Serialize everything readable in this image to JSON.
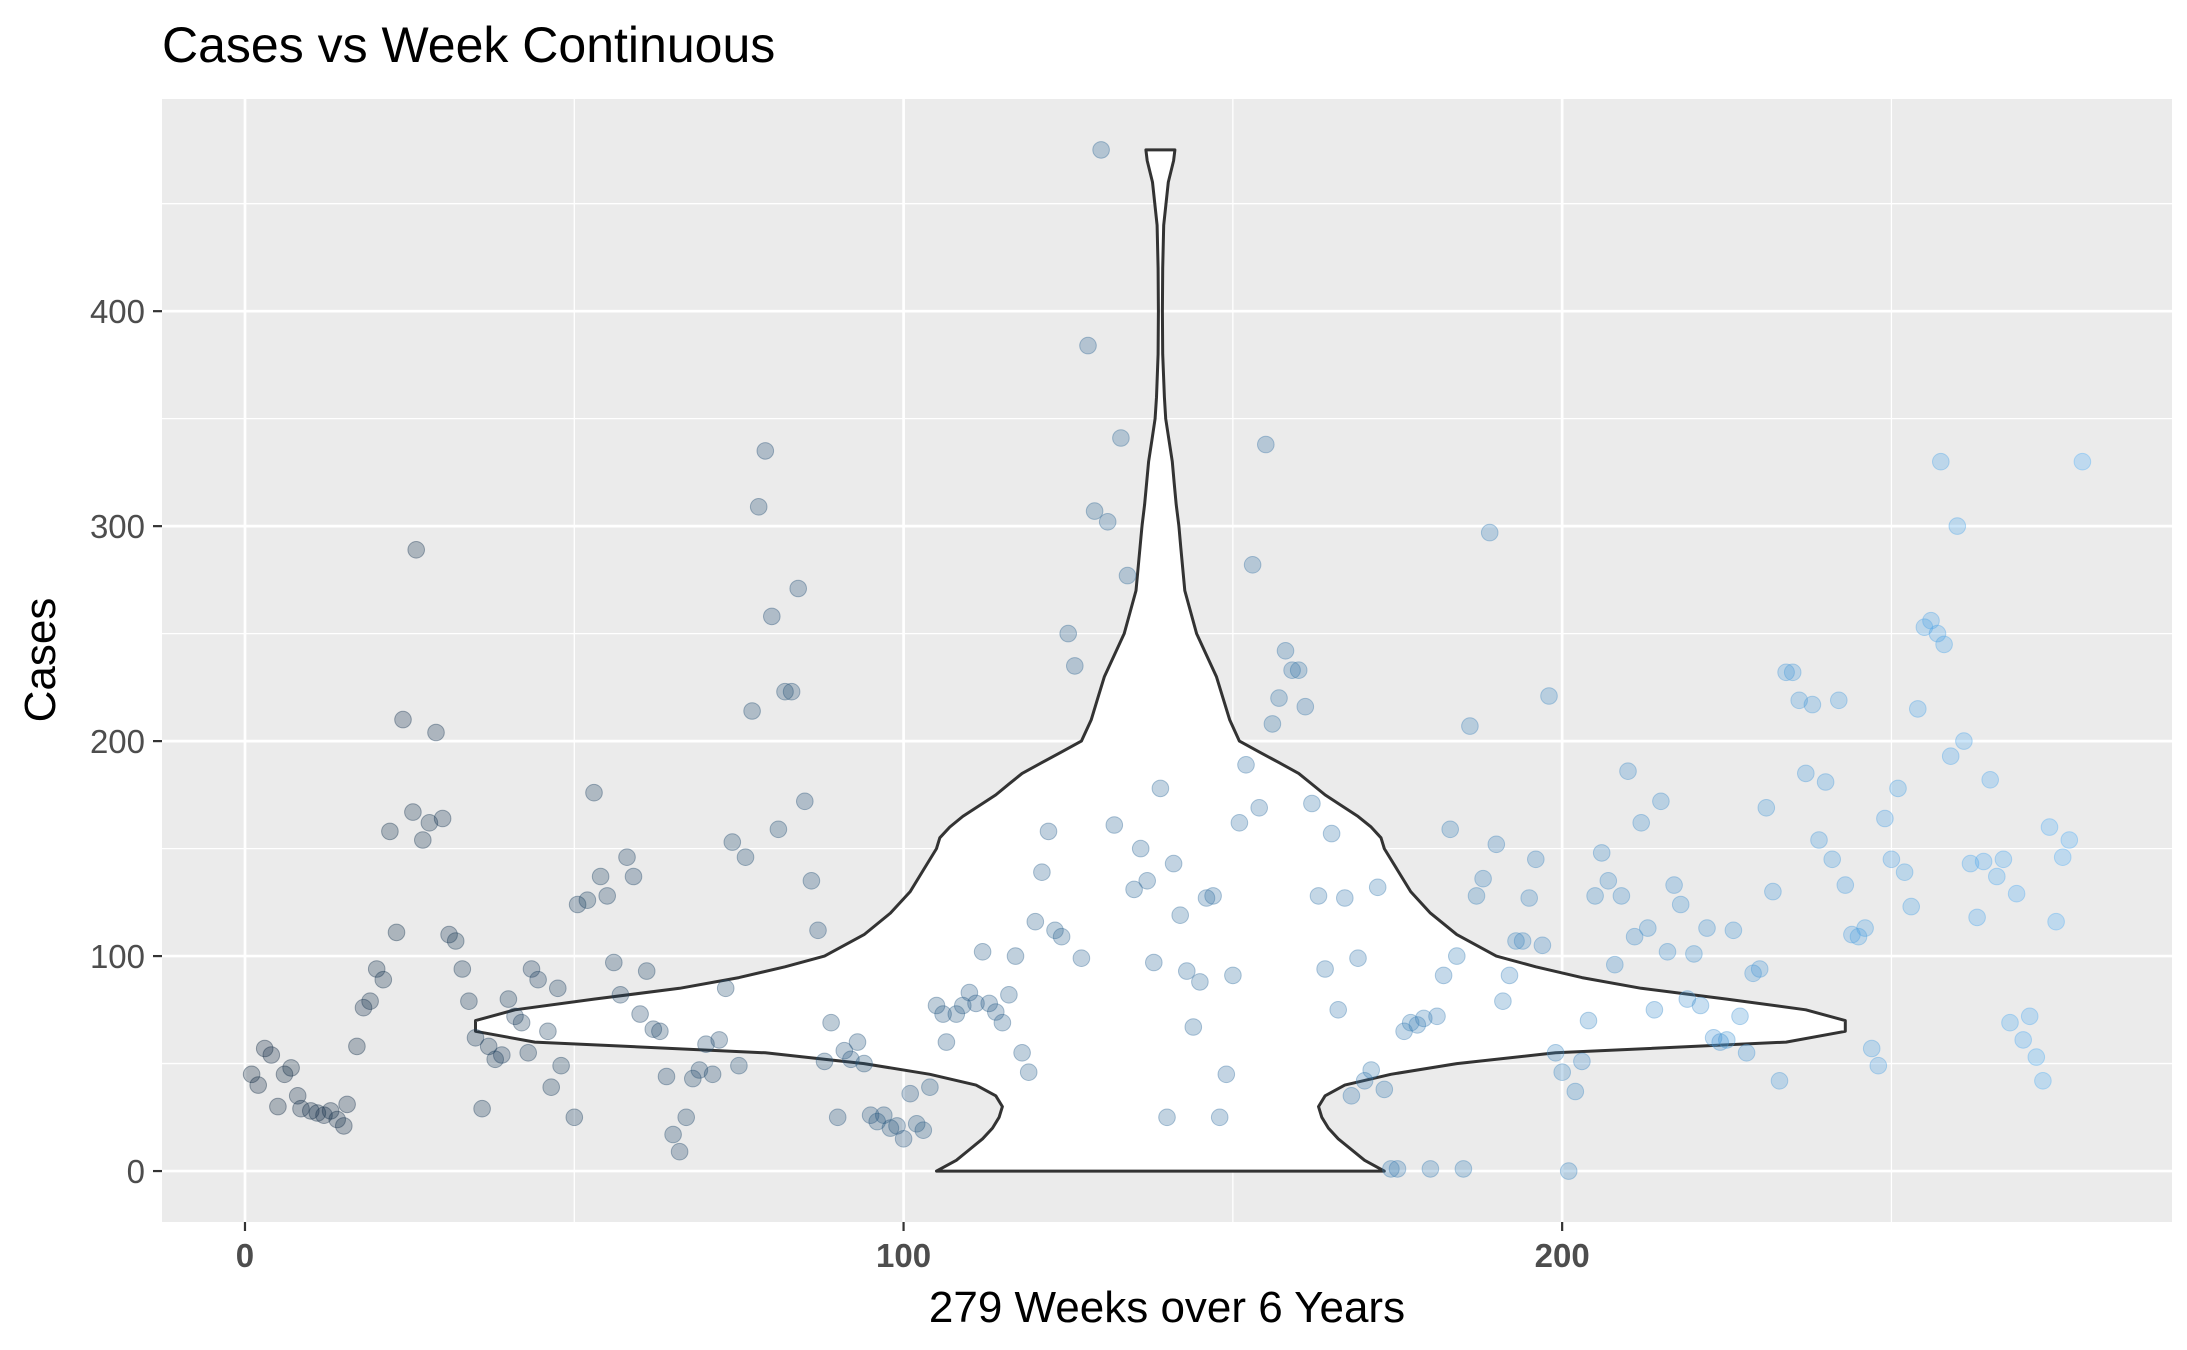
{
  "chart_data": {
    "type": "scatter",
    "title": "Cases vs Week Continuous",
    "xlabel": "279 Weeks over 6 Years",
    "ylabel": "Cases",
    "xlim": [
      -12.6,
      292.6
    ],
    "ylim": [
      -23.7,
      498.7
    ],
    "x_ticks": [
      0,
      100,
      200
    ],
    "x_tick_labels": [
      "0",
      "100",
      "200"
    ],
    "y_ticks": [
      0,
      100,
      200,
      300,
      400
    ],
    "y_tick_labels": [
      "0",
      "100",
      "200",
      "300",
      "400"
    ],
    "grid": true,
    "legend": "none",
    "point_alpha": 0.3,
    "color_gradient": [
      "#132b43",
      "#56b1f7"
    ],
    "points": [
      [
        1,
        45
      ],
      [
        2,
        40
      ],
      [
        3,
        57
      ],
      [
        4,
        54
      ],
      [
        5,
        30
      ],
      [
        6,
        45
      ],
      [
        7,
        48
      ],
      [
        8,
        35
      ],
      [
        8.5,
        29
      ],
      [
        10,
        28
      ],
      [
        11,
        27
      ],
      [
        12,
        26
      ],
      [
        13,
        28
      ],
      [
        14,
        24
      ],
      [
        15,
        21
      ],
      [
        15.5,
        31
      ],
      [
        17,
        58
      ],
      [
        18,
        76
      ],
      [
        19,
        79
      ],
      [
        20,
        94
      ],
      [
        21,
        89
      ],
      [
        22,
        158
      ],
      [
        23,
        111
      ],
      [
        24,
        210
      ],
      [
        25.5,
        167
      ],
      [
        26,
        289
      ],
      [
        27,
        154
      ],
      [
        28,
        162
      ],
      [
        29,
        204
      ],
      [
        30,
        164
      ],
      [
        31,
        110
      ],
      [
        32,
        107
      ],
      [
        33,
        94
      ],
      [
        34,
        79
      ],
      [
        35,
        62
      ],
      [
        36,
        29
      ],
      [
        37,
        58
      ],
      [
        38,
        52
      ],
      [
        39,
        54
      ],
      [
        40,
        80
      ],
      [
        41,
        72
      ],
      [
        42,
        69
      ],
      [
        43,
        55
      ],
      [
        43.5,
        94
      ],
      [
        44.5,
        89
      ],
      [
        46,
        65
      ],
      [
        46.5,
        39
      ],
      [
        47.5,
        85
      ],
      [
        48,
        49
      ],
      [
        50,
        25
      ],
      [
        50.5,
        124
      ],
      [
        52,
        126
      ],
      [
        53,
        176
      ],
      [
        54,
        137
      ],
      [
        55,
        128
      ],
      [
        56,
        97
      ],
      [
        57,
        82
      ],
      [
        58,
        146
      ],
      [
        59,
        137
      ],
      [
        60,
        73
      ],
      [
        61,
        93
      ],
      [
        62,
        66
      ],
      [
        63,
        65
      ],
      [
        64,
        44
      ],
      [
        65,
        17
      ],
      [
        66,
        9
      ],
      [
        67,
        25
      ],
      [
        68,
        43
      ],
      [
        69,
        47
      ],
      [
        70,
        59
      ],
      [
        71,
        45
      ],
      [
        72,
        61
      ],
      [
        73,
        85
      ],
      [
        74,
        153
      ],
      [
        75,
        49
      ],
      [
        76,
        146
      ],
      [
        77,
        214
      ],
      [
        78,
        309
      ],
      [
        79,
        335
      ],
      [
        80,
        258
      ],
      [
        81,
        159
      ],
      [
        82,
        223
      ],
      [
        83,
        223
      ],
      [
        84,
        271
      ],
      [
        85,
        172
      ],
      [
        86,
        135
      ],
      [
        87,
        112
      ],
      [
        88,
        51
      ],
      [
        89,
        69
      ],
      [
        90,
        25
      ],
      [
        91,
        56
      ],
      [
        92,
        52
      ],
      [
        93,
        60
      ],
      [
        94,
        50
      ],
      [
        95,
        26
      ],
      [
        96,
        23
      ],
      [
        97,
        26
      ],
      [
        98,
        20
      ],
      [
        99,
        21
      ],
      [
        100,
        15
      ],
      [
        101,
        36
      ],
      [
        102,
        22
      ],
      [
        103,
        19
      ],
      [
        104,
        39
      ],
      [
        105,
        77
      ],
      [
        106,
        73
      ],
      [
        106.5,
        60
      ],
      [
        108,
        73
      ],
      [
        109,
        77
      ],
      [
        110,
        83
      ],
      [
        111,
        78
      ],
      [
        112,
        102
      ],
      [
        113,
        78
      ],
      [
        114,
        74
      ],
      [
        115,
        69
      ],
      [
        116,
        82
      ],
      [
        117,
        100
      ],
      [
        118,
        55
      ],
      [
        119,
        46
      ],
      [
        120,
        116
      ],
      [
        121,
        139
      ],
      [
        122,
        158
      ],
      [
        123,
        112
      ],
      [
        124,
        109
      ],
      [
        125,
        250
      ],
      [
        126,
        235
      ],
      [
        127,
        99
      ],
      [
        128,
        384
      ],
      [
        129,
        307
      ],
      [
        130,
        475
      ],
      [
        131,
        302
      ],
      [
        132,
        161
      ],
      [
        133,
        341
      ],
      [
        134,
        277
      ],
      [
        135,
        131
      ],
      [
        136,
        150
      ],
      [
        137,
        135
      ],
      [
        138,
        97
      ],
      [
        139,
        178
      ],
      [
        140,
        25
      ],
      [
        141,
        143
      ],
      [
        142,
        119
      ],
      [
        143,
        93
      ],
      [
        144,
        67
      ],
      [
        145,
        88
      ],
      [
        146,
        127
      ],
      [
        147,
        128
      ],
      [
        148,
        25
      ],
      [
        149,
        45
      ],
      [
        150,
        91
      ],
      [
        151,
        162
      ],
      [
        152,
        189
      ],
      [
        153,
        282
      ],
      [
        154,
        169
      ],
      [
        155,
        338
      ],
      [
        156,
        208
      ],
      [
        157,
        220
      ],
      [
        158,
        242
      ],
      [
        159,
        233
      ],
      [
        160,
        233
      ],
      [
        161,
        216
      ],
      [
        162,
        171
      ],
      [
        163,
        128
      ],
      [
        164,
        94
      ],
      [
        165,
        157
      ],
      [
        166,
        75
      ],
      [
        167,
        127
      ],
      [
        168,
        35
      ],
      [
        169,
        99
      ],
      [
        170,
        42
      ],
      [
        171,
        47
      ],
      [
        172,
        132
      ],
      [
        173,
        38
      ],
      [
        174,
        1
      ],
      [
        175,
        1
      ],
      [
        176,
        65
      ],
      [
        177,
        69
      ],
      [
        178,
        68
      ],
      [
        179,
        71
      ],
      [
        180,
        1
      ],
      [
        181,
        72
      ],
      [
        182,
        91
      ],
      [
        183,
        159
      ],
      [
        184,
        100
      ],
      [
        185,
        1
      ],
      [
        186,
        207
      ],
      [
        187,
        128
      ],
      [
        188,
        136
      ],
      [
        189,
        297
      ],
      [
        190,
        152
      ],
      [
        191,
        79
      ],
      [
        192,
        91
      ],
      [
        193,
        107
      ],
      [
        194,
        107
      ],
      [
        195,
        127
      ],
      [
        196,
        145
      ],
      [
        197,
        105
      ],
      [
        198,
        221
      ],
      [
        199,
        55
      ],
      [
        200,
        46
      ],
      [
        201,
        0
      ],
      [
        202,
        37
      ],
      [
        203,
        51
      ],
      [
        204,
        70
      ],
      [
        205,
        128
      ],
      [
        206,
        148
      ],
      [
        207,
        135
      ],
      [
        208,
        96
      ],
      [
        209,
        128
      ],
      [
        210,
        186
      ],
      [
        211,
        109
      ],
      [
        212,
        162
      ],
      [
        213,
        113
      ],
      [
        214,
        75
      ],
      [
        215,
        172
      ],
      [
        216,
        102
      ],
      [
        217,
        133
      ],
      [
        218,
        124
      ],
      [
        219,
        80
      ],
      [
        220,
        101
      ],
      [
        221,
        77
      ],
      [
        222,
        113
      ],
      [
        223,
        62
      ],
      [
        224,
        60
      ],
      [
        225,
        61
      ],
      [
        226,
        112
      ],
      [
        227,
        72
      ],
      [
        228,
        55
      ],
      [
        229,
        92
      ],
      [
        230,
        94
      ],
      [
        231,
        169
      ],
      [
        232,
        130
      ],
      [
        233,
        42
      ],
      [
        234,
        232
      ],
      [
        235,
        232
      ],
      [
        236,
        219
      ],
      [
        237,
        185
      ],
      [
        238,
        217
      ],
      [
        239,
        154
      ],
      [
        240,
        181
      ],
      [
        241,
        145
      ],
      [
        242,
        219
      ],
      [
        243,
        133
      ],
      [
        244,
        110
      ],
      [
        245,
        109
      ],
      [
        246,
        113
      ],
      [
        247,
        57
      ],
      [
        248,
        49
      ],
      [
        249,
        164
      ],
      [
        250,
        145
      ],
      [
        251,
        178
      ],
      [
        252,
        139
      ],
      [
        253,
        123
      ],
      [
        254,
        215
      ],
      [
        255,
        253
      ],
      [
        256,
        256
      ],
      [
        257,
        250
      ],
      [
        257.5,
        330
      ],
      [
        258,
        245
      ],
      [
        259,
        193
      ],
      [
        260,
        300
      ],
      [
        261,
        200
      ],
      [
        262,
        143
      ],
      [
        263,
        118
      ],
      [
        264,
        144
      ],
      [
        265,
        182
      ],
      [
        266,
        137
      ],
      [
        267,
        145
      ],
      [
        268,
        69
      ],
      [
        269,
        129
      ],
      [
        270,
        61
      ],
      [
        271,
        72
      ],
      [
        272,
        53
      ],
      [
        273,
        42
      ],
      [
        274,
        160
      ],
      [
        275,
        116
      ],
      [
        276,
        146
      ],
      [
        277,
        154
      ],
      [
        279,
        330
      ]
    ]
  },
  "violin": {
    "center_x": 139,
    "y_min": 0,
    "y_max": 475,
    "profile": [
      [
        0,
        34
      ],
      [
        5,
        31
      ],
      [
        10,
        29
      ],
      [
        15,
        27
      ],
      [
        20,
        25.5
      ],
      [
        25,
        24.5
      ],
      [
        30,
        24
      ],
      [
        35,
        25
      ],
      [
        40,
        28
      ],
      [
        45,
        35
      ],
      [
        50,
        45
      ],
      [
        55,
        60
      ],
      [
        60,
        95
      ],
      [
        65,
        104
      ],
      [
        70,
        104
      ],
      [
        75,
        98
      ],
      [
        80,
        86
      ],
      [
        85,
        73
      ],
      [
        90,
        64
      ],
      [
        95,
        57
      ],
      [
        100,
        51
      ],
      [
        110,
        45
      ],
      [
        120,
        41
      ],
      [
        130,
        38
      ],
      [
        140,
        36
      ],
      [
        150,
        34
      ],
      [
        155,
        33.5
      ],
      [
        160,
        32
      ],
      [
        165,
        30
      ],
      [
        170,
        27.5
      ],
      [
        175,
        25
      ],
      [
        180,
        23
      ],
      [
        185,
        21
      ],
      [
        190,
        18
      ],
      [
        195,
        15
      ],
      [
        200,
        12
      ],
      [
        210,
        10.5
      ],
      [
        220,
        9.5
      ],
      [
        230,
        8.5
      ],
      [
        240,
        7
      ],
      [
        250,
        5.5
      ],
      [
        260,
        4.6
      ],
      [
        270,
        3.7
      ],
      [
        280,
        3.4
      ],
      [
        290,
        3.1
      ],
      [
        300,
        2.8
      ],
      [
        310,
        2.4
      ],
      [
        320,
        2.1
      ],
      [
        330,
        1.8
      ],
      [
        340,
        1.3
      ],
      [
        350,
        0.8
      ],
      [
        360,
        0.6
      ],
      [
        380,
        0.35
      ],
      [
        400,
        0.3
      ],
      [
        420,
        0.35
      ],
      [
        440,
        0.5
      ],
      [
        460,
        1.2
      ],
      [
        470,
        2.0
      ],
      [
        475,
        2.2
      ]
    ]
  }
}
